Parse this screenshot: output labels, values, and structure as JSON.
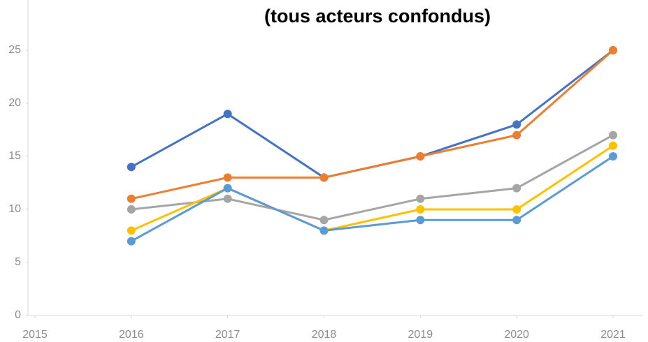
{
  "chart_data": {
    "type": "line",
    "title": "(tous acteurs confondus)",
    "x": [
      2016,
      2017,
      2018,
      2019,
      2020,
      2021
    ],
    "series": [
      {
        "color": "#4472c4",
        "values": [
          14,
          19,
          13,
          15,
          18,
          25
        ]
      },
      {
        "color": "#ed7d31",
        "values": [
          11,
          13,
          13,
          15,
          17,
          25
        ]
      },
      {
        "color": "#a5a5a5",
        "values": [
          10,
          11,
          9,
          11,
          12,
          17
        ]
      },
      {
        "color": "#ffc000",
        "values": [
          8,
          12,
          8,
          10,
          10,
          16
        ]
      },
      {
        "color": "#5b9bd5",
        "values": [
          7,
          12,
          8,
          9,
          9,
          15
        ]
      }
    ],
    "xlim": [
      2015,
      2021
    ],
    "xticks": [
      2015,
      2016,
      2017,
      2018,
      2019,
      2020,
      2021
    ],
    "ylim": [
      0,
      30
    ],
    "yticks": [
      0,
      5,
      10,
      15,
      20,
      25
    ]
  }
}
